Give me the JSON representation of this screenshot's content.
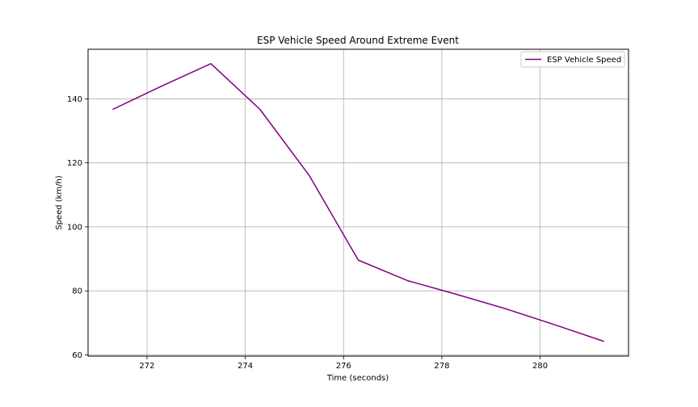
{
  "chart_data": {
    "type": "line",
    "title": "ESP Vehicle Speed Around Extreme Event",
    "xlabel": "Time (seconds)",
    "ylabel": "Speed (km/h)",
    "xlim": [
      270.8,
      281.8
    ],
    "ylim": [
      59.6,
      155.5
    ],
    "xticks": [
      272,
      274,
      276,
      278,
      280
    ],
    "yticks": [
      60,
      80,
      100,
      120,
      140
    ],
    "grid": true,
    "legend_position": "top-right",
    "series": [
      {
        "name": "ESP Vehicle Speed",
        "color": "#800080",
        "x": [
          271.3,
          272.3,
          273.3,
          274.3,
          275.3,
          276.3,
          277.3,
          278.3,
          279.3,
          280.3,
          281.3
        ],
        "y": [
          136.7,
          144.0,
          151.0,
          136.7,
          116.1,
          89.6,
          83.2,
          78.9,
          74.4,
          69.4,
          64.2
        ]
      }
    ]
  }
}
